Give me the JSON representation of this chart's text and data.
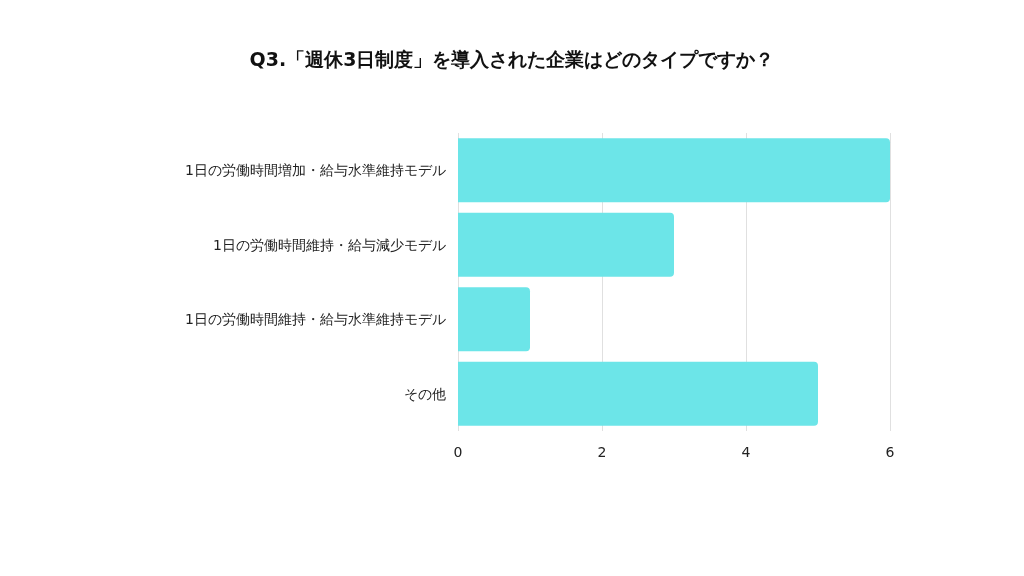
{
  "chart_data": {
    "type": "bar",
    "orientation": "horizontal",
    "title": "Q3.「週休3日制度」を導入された企業はどのタイプですか？",
    "categories": [
      "1日の労働時間増加・給与水準維持モデル",
      "1日の労働時間維持・給与減少モデル",
      "1日の労働時間維持・給与水準維持モデル",
      "その他"
    ],
    "values": [
      6,
      3,
      1,
      5
    ],
    "color": "#6ce5e8",
    "xlim": [
      0,
      6
    ],
    "xticks": [
      0,
      2,
      4,
      6
    ],
    "grid": "x"
  }
}
